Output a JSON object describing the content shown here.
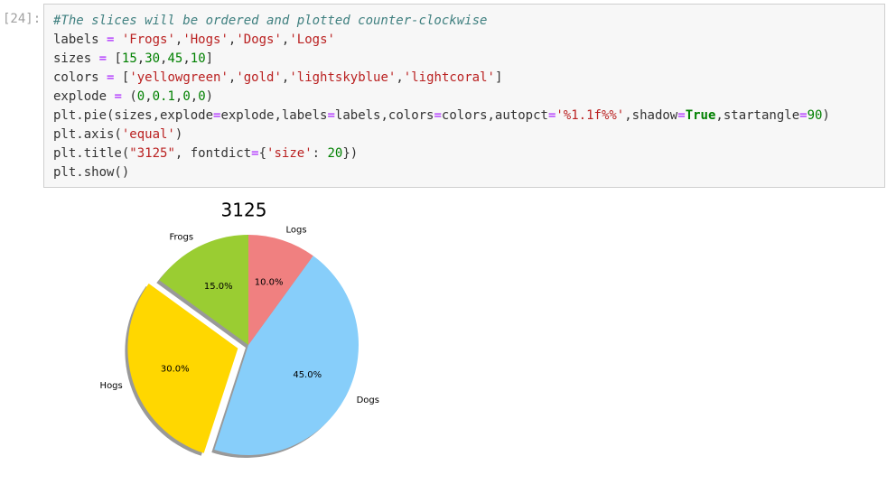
{
  "cell": {
    "prompt": "[24]:",
    "code": [
      [
        {
          "text": "#The slices will be ordered and plotted counter-clockwise",
          "color": "#408080",
          "style": "italic"
        }
      ],
      [
        {
          "text": "labels",
          "color": "#333333"
        },
        {
          "text": " = ",
          "color": "#aa22ff"
        },
        {
          "text": "'Frogs'",
          "color": "#ba2121"
        },
        {
          "text": ",",
          "color": "#333333"
        },
        {
          "text": "'Hogs'",
          "color": "#ba2121"
        },
        {
          "text": ",",
          "color": "#333333"
        },
        {
          "text": "'Dogs'",
          "color": "#ba2121"
        },
        {
          "text": ",",
          "color": "#333333"
        },
        {
          "text": "'Logs'",
          "color": "#ba2121"
        }
      ],
      [
        {
          "text": "sizes",
          "color": "#333333"
        },
        {
          "text": " = ",
          "color": "#aa22ff"
        },
        {
          "text": "[",
          "color": "#333333"
        },
        {
          "text": "15",
          "color": "#008000"
        },
        {
          "text": ",",
          "color": "#333333"
        },
        {
          "text": "30",
          "color": "#008000"
        },
        {
          "text": ",",
          "color": "#333333"
        },
        {
          "text": "45",
          "color": "#008000"
        },
        {
          "text": ",",
          "color": "#333333"
        },
        {
          "text": "10",
          "color": "#008000"
        },
        {
          "text": "]",
          "color": "#333333"
        }
      ],
      [
        {
          "text": "colors",
          "color": "#333333"
        },
        {
          "text": " = ",
          "color": "#aa22ff"
        },
        {
          "text": "[",
          "color": "#333333"
        },
        {
          "text": "'yellowgreen'",
          "color": "#ba2121"
        },
        {
          "text": ",",
          "color": "#333333"
        },
        {
          "text": "'gold'",
          "color": "#ba2121"
        },
        {
          "text": ",",
          "color": "#333333"
        },
        {
          "text": "'lightskyblue'",
          "color": "#ba2121"
        },
        {
          "text": ",",
          "color": "#333333"
        },
        {
          "text": "'lightcoral'",
          "color": "#ba2121"
        },
        {
          "text": "]",
          "color": "#333333"
        }
      ],
      [
        {
          "text": "explode",
          "color": "#333333"
        },
        {
          "text": " = ",
          "color": "#aa22ff"
        },
        {
          "text": "(",
          "color": "#333333"
        },
        {
          "text": "0",
          "color": "#008000"
        },
        {
          "text": ",",
          "color": "#333333"
        },
        {
          "text": "0.1",
          "color": "#008000"
        },
        {
          "text": ",",
          "color": "#333333"
        },
        {
          "text": "0",
          "color": "#008000"
        },
        {
          "text": ",",
          "color": "#333333"
        },
        {
          "text": "0",
          "color": "#008000"
        },
        {
          "text": ")",
          "color": "#333333"
        }
      ],
      [
        {
          "text": "plt.pie(sizes,explode",
          "color": "#333333"
        },
        {
          "text": "=",
          "color": "#aa22ff"
        },
        {
          "text": "explode,labels",
          "color": "#333333"
        },
        {
          "text": "=",
          "color": "#aa22ff"
        },
        {
          "text": "labels,colors",
          "color": "#333333"
        },
        {
          "text": "=",
          "color": "#aa22ff"
        },
        {
          "text": "colors,autopct",
          "color": "#333333"
        },
        {
          "text": "=",
          "color": "#aa22ff"
        },
        {
          "text": "'%1.1f%%'",
          "color": "#ba2121"
        },
        {
          "text": ",shadow",
          "color": "#333333"
        },
        {
          "text": "=",
          "color": "#aa22ff"
        },
        {
          "text": "True",
          "color": "#008000",
          "style": "bold"
        },
        {
          "text": ",startangle",
          "color": "#333333"
        },
        {
          "text": "=",
          "color": "#aa22ff"
        },
        {
          "text": "90",
          "color": "#008000"
        },
        {
          "text": ")",
          "color": "#333333"
        }
      ],
      [
        {
          "text": "plt.axis(",
          "color": "#333333"
        },
        {
          "text": "'equal'",
          "color": "#ba2121"
        },
        {
          "text": ")",
          "color": "#333333"
        }
      ],
      [
        {
          "text": "plt.title(",
          "color": "#333333"
        },
        {
          "text": "\"3125\"",
          "color": "#ba2121"
        },
        {
          "text": ", fontdict",
          "color": "#333333"
        },
        {
          "text": "=",
          "color": "#aa22ff"
        },
        {
          "text": "{",
          "color": "#333333"
        },
        {
          "text": "'size'",
          "color": "#ba2121"
        },
        {
          "text": ": ",
          "color": "#333333"
        },
        {
          "text": "20",
          "color": "#008000"
        },
        {
          "text": "})",
          "color": "#333333"
        }
      ],
      [
        {
          "text": "plt.show()",
          "color": "#333333"
        }
      ]
    ]
  },
  "chart_data": {
    "type": "pie",
    "title": "3125",
    "categories": [
      "Frogs",
      "Hogs",
      "Dogs",
      "Logs"
    ],
    "values": [
      15,
      30,
      45,
      10
    ],
    "value_labels": [
      "15.0%",
      "30.0%",
      "45.0%",
      "10.0%"
    ],
    "colors": [
      "#9acd32",
      "#ffd700",
      "#87cefa",
      "#f08080"
    ],
    "explode": [
      0,
      0.1,
      0,
      0
    ],
    "startangle": 90,
    "counterclock": true,
    "shadow": true
  }
}
